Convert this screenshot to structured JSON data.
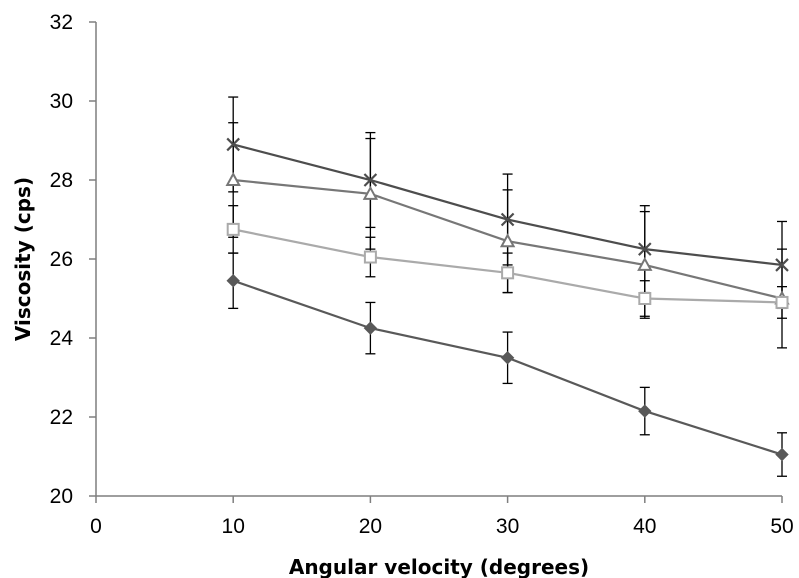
{
  "chart_data": {
    "type": "line",
    "xlabel": "Angular velocity (degrees)",
    "ylabel": "Viscosity (cps)",
    "xlim": [
      0,
      50
    ],
    "ylim": [
      20,
      32
    ],
    "xticks": [
      0,
      10,
      20,
      30,
      40,
      50
    ],
    "yticks": [
      20,
      22,
      24,
      26,
      28,
      30,
      32
    ],
    "grid": false,
    "legend": "none",
    "x": [
      10,
      20,
      30,
      40,
      50
    ],
    "series": [
      {
        "marker": "x",
        "color": "#4d4d4d",
        "values": [
          28.9,
          28.0,
          27.0,
          26.25,
          25.85
        ],
        "error": [
          1.2,
          1.2,
          1.15,
          1.1,
          1.1
        ]
      },
      {
        "marker": "triangle",
        "color": "#777777",
        "values": [
          28.0,
          27.65,
          26.45,
          25.85,
          25.0
        ],
        "error": [
          1.45,
          1.4,
          1.3,
          1.35,
          1.25
        ]
      },
      {
        "marker": "square",
        "color": "#aaaaaa",
        "values": [
          26.75,
          26.05,
          25.65,
          25.0,
          24.9
        ],
        "error": [
          0.6,
          0.5,
          0.5,
          0.45,
          0.4
        ]
      },
      {
        "marker": "diamond",
        "color": "#595959",
        "values": [
          25.45,
          24.25,
          23.5,
          22.15,
          21.05
        ],
        "error": [
          0.7,
          0.65,
          0.65,
          0.6,
          0.55
        ]
      }
    ]
  }
}
